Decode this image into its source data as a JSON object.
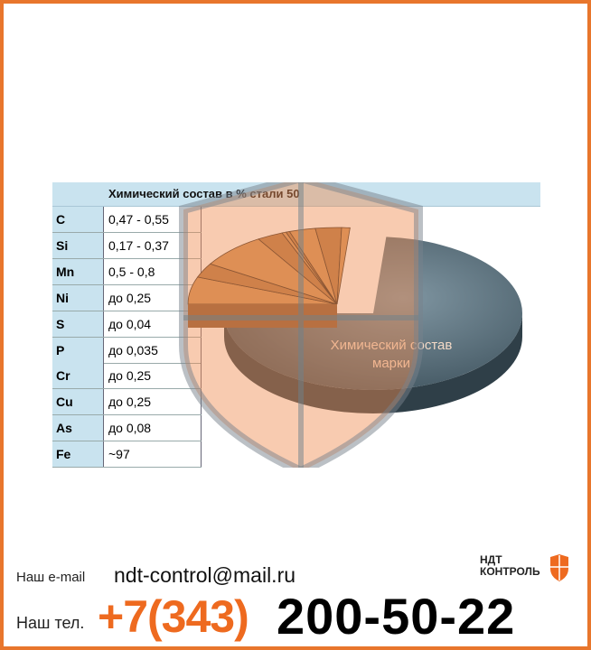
{
  "table": {
    "title": "Химический состав в % стали 50",
    "rows": [
      {
        "element": "C",
        "value": "0,47 - 0,55"
      },
      {
        "element": "Si",
        "value": "0,17 - 0,37"
      },
      {
        "element": "Mn",
        "value": "0,5 - 0,8"
      },
      {
        "element": "Ni",
        "value": "до 0,25"
      },
      {
        "element": "S",
        "value": "до 0,04"
      },
      {
        "element": "P",
        "value": "до 0,035"
      },
      {
        "element": "Cr",
        "value": "до 0,25"
      },
      {
        "element": "Cu",
        "value": "до 0,25"
      },
      {
        "element": "As",
        "value": "до 0,08"
      },
      {
        "element": "Fe",
        "value": "~97"
      }
    ]
  },
  "chart_data": {
    "type": "pie",
    "style": "3d-exploded",
    "label": "Химический состав марки",
    "categories": [
      "C",
      "Si",
      "Mn",
      "Ni",
      "S",
      "P",
      "Cr",
      "Cu",
      "As",
      "Fe"
    ],
    "values": [
      0.51,
      0.27,
      0.65,
      0.25,
      0.04,
      0.035,
      0.25,
      0.25,
      0.08,
      97
    ],
    "colors": {
      "main": "#4f6470",
      "minor": "#c98a4a"
    }
  },
  "footer": {
    "email_label": "Наш e-mail",
    "email": "ndt-control@mail.ru",
    "phone_label": "Наш тел.",
    "phone_code": "+7(343)",
    "phone_number": "200-50-22",
    "logo_text_1": "НДТ",
    "logo_text_2": "КОНТРОЛЬ"
  },
  "colors": {
    "border": "#e8762c",
    "accent": "#ee6a1f",
    "table_header": "#c9e3ef"
  }
}
